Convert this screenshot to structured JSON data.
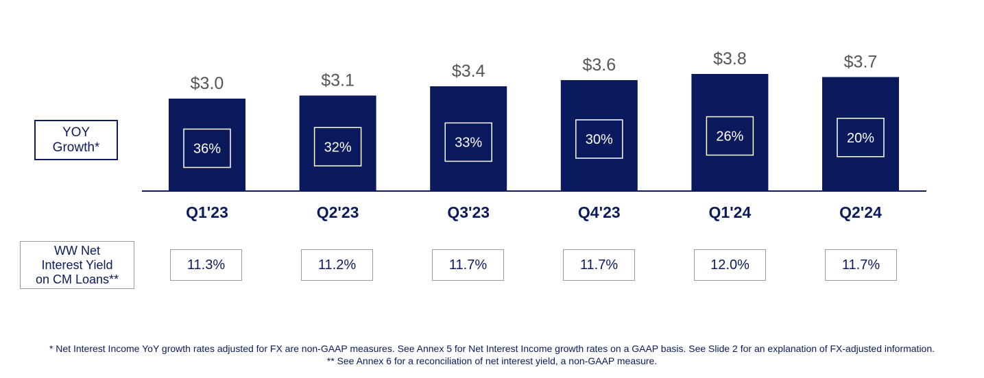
{
  "chart_data": {
    "type": "bar",
    "categories": [
      "Q1'23",
      "Q2'23",
      "Q3'23",
      "Q4'23",
      "Q1'24",
      "Q2'24"
    ],
    "values": [
      3.0,
      3.1,
      3.4,
      3.6,
      3.8,
      3.7
    ],
    "value_labels": [
      "$3.0",
      "$3.1",
      "$3.4",
      "$3.6",
      "$3.8",
      "$3.7"
    ],
    "yoy_growth": [
      "36%",
      "32%",
      "33%",
      "30%",
      "26%",
      "20%"
    ],
    "ylim": [
      0,
      3.8
    ],
    "grid": false,
    "legend": "none",
    "colors": {
      "bar": "#0a1a5c",
      "text": "#0a1a5c",
      "value_label": "#555555",
      "box_border": "#9a9a9a"
    }
  },
  "yoy_label": {
    "line1": "YOY",
    "line2": "Growth*"
  },
  "yield_label": {
    "line1": "WW Net",
    "line2": "Interest Yield",
    "line3": "on CM Loans**"
  },
  "net_interest_yield": [
    "11.3%",
    "11.2%",
    "11.7%",
    "11.7%",
    "12.0%",
    "11.7%"
  ],
  "footnotes": {
    "line1": "* Net Interest Income YoY growth rates adjusted for FX are non-GAAP measures. See Annex 5 for Net Interest Income growth rates on a GAAP basis. See Slide 2 for an explanation of FX-adjusted information.",
    "line2": "** See Annex 6 for a reconciliation of net interest yield, a non-GAAP measure."
  }
}
